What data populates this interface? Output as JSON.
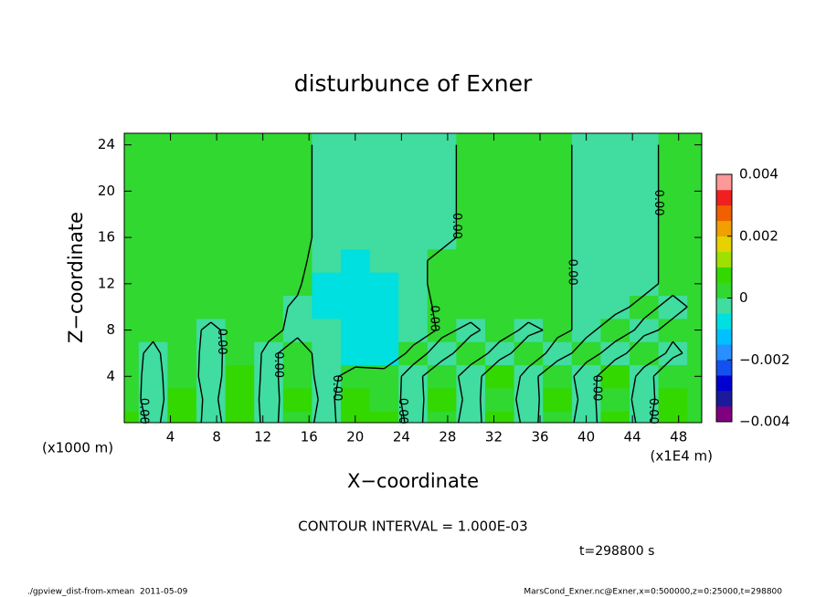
{
  "chart_data": {
    "type": "contour",
    "title": "disturbunce of Exner",
    "xlabel": "X−coordinate",
    "ylabel": "Z−coordinate",
    "x_unit_label": "(x1E4 m)",
    "y_unit_label": "(x1000 m)",
    "xlim": [
      0,
      50
    ],
    "ylim": [
      0,
      25
    ],
    "xticks": [
      4,
      8,
      12,
      16,
      20,
      24,
      28,
      32,
      36,
      40,
      44,
      48
    ],
    "yticks": [
      4,
      8,
      12,
      16,
      20,
      24
    ],
    "x": [
      0,
      2.5,
      5,
      7.5,
      10,
      12.5,
      15,
      17.5,
      20,
      22.5,
      25,
      27.5,
      30,
      32.5,
      35,
      37.5,
      40,
      42.5,
      45,
      47.5,
      50
    ],
    "y": [
      0,
      2,
      4,
      6,
      8,
      10,
      12,
      14,
      16,
      18,
      20,
      22,
      24
    ],
    "z": [
      [
        0.0006,
        -0.0002,
        0.0006,
        -0.0003,
        0.0005,
        -0.0002,
        0.0004,
        -0.0003,
        0.0006,
        0.0005,
        -0.0002,
        0.0004,
        -0.0003,
        0.0005,
        -0.0002,
        0.0004,
        -0.0003,
        0.0005,
        -0.0002,
        0.0006,
        0.0003
      ],
      [
        0.0004,
        -0.0003,
        0.0005,
        -0.0002,
        0.0006,
        -0.0003,
        0.0005,
        -0.0002,
        0.0005,
        0.0004,
        -0.0003,
        0.0005,
        -0.0002,
        0.0004,
        -0.0003,
        0.0005,
        -0.0002,
        0.0004,
        -0.0003,
        0.0005,
        0.0002
      ],
      [
        0.0003,
        -0.0002,
        0.0004,
        -0.0003,
        0.0005,
        -0.0002,
        0.0004,
        -0.0003,
        0.0004,
        0.0003,
        -0.0002,
        0.0004,
        -0.0003,
        0.0005,
        -0.0002,
        0.0004,
        -0.0003,
        0.0005,
        -0.0002,
        0.0004,
        0.0002
      ],
      [
        0.0002,
        -0.0001,
        0.0003,
        -0.0002,
        0.0003,
        -0.0001,
        0.0002,
        -0.0002,
        -0.0006,
        -0.0006,
        0.0002,
        -0.0002,
        0.0003,
        -0.0002,
        0.0003,
        -0.0002,
        0.0002,
        -0.0002,
        0.0003,
        -0.0001,
        0.0002
      ],
      [
        0.0002,
        0.0001,
        0.0002,
        -0.0001,
        0.0002,
        0.0001,
        -0.0001,
        -0.0004,
        -0.0007,
        -0.0007,
        -0.0004,
        0.0001,
        -0.0001,
        0.0002,
        -0.0001,
        0.0001,
        -0.0001,
        0.0002,
        -0.0001,
        0.0001,
        0.0001
      ],
      [
        0.0002,
        0.0002,
        0.0002,
        0.0002,
        0.0002,
        0.0002,
        -0.0001,
        -0.0006,
        -0.0007,
        -0.0006,
        -0.0002,
        0.0001,
        0.0002,
        0.0001,
        0.0002,
        0.0001,
        -0.0001,
        -0.0001,
        0.0001,
        -0.0001,
        0.0001
      ],
      [
        0.0002,
        0.0002,
        0.0002,
        0.0002,
        0.0002,
        0.0002,
        0.0001,
        -0.0006,
        -0.0007,
        -0.0006,
        -0.0001,
        0.0001,
        0.0002,
        0.0002,
        0.0002,
        0.0001,
        -0.0001,
        -0.0001,
        -0.0001,
        0.0001,
        0.0001
      ],
      [
        0.0002,
        0.0002,
        0.0002,
        0.0002,
        0.0002,
        0.0002,
        0.0001,
        -0.0002,
        -0.0006,
        -0.0002,
        -0.0001,
        0.0001,
        0.0002,
        0.0002,
        0.0002,
        0.0001,
        -0.0001,
        -0.0001,
        -0.0001,
        0.0001,
        0.0001
      ],
      [
        0.0002,
        0.0002,
        0.0002,
        0.0002,
        0.0002,
        0.0002,
        0.0001,
        -0.0001,
        -0.0001,
        -0.0001,
        -0.0001,
        -0.0001,
        0.0001,
        0.0002,
        0.0002,
        0.0001,
        -0.0001,
        -0.0001,
        -0.0001,
        0.0001,
        0.0001
      ],
      [
        0.0002,
        0.0002,
        0.0002,
        0.0002,
        0.0002,
        0.0002,
        0.0001,
        -0.0001,
        -0.0001,
        -0.0001,
        -0.0001,
        -0.0001,
        0.0001,
        0.0002,
        0.0002,
        0.0001,
        -0.0001,
        -0.0001,
        -0.0001,
        0.0001,
        0.0001
      ],
      [
        0.0002,
        0.0002,
        0.0002,
        0.0002,
        0.0002,
        0.0002,
        0.0001,
        -0.0001,
        -0.0001,
        -0.0001,
        -0.0001,
        -0.0001,
        0.0001,
        0.0002,
        0.0002,
        0.0001,
        -0.0001,
        -0.0001,
        -0.0001,
        0.0001,
        0.0001
      ],
      [
        0.0002,
        0.0002,
        0.0002,
        0.0002,
        0.0002,
        0.0002,
        0.0001,
        -0.0001,
        -0.0001,
        -0.0001,
        -0.0001,
        -0.0001,
        0.0001,
        0.0002,
        0.0002,
        0.0001,
        -0.0001,
        -0.0001,
        -0.0001,
        0.0001,
        0.0001
      ],
      [
        0.0002,
        0.0002,
        0.0002,
        0.0002,
        0.0002,
        0.0002,
        0.0001,
        -0.0001,
        -0.0001,
        -0.0001,
        -0.0001,
        -0.0001,
        0.0001,
        0.0002,
        0.0002,
        0.0001,
        -0.0001,
        -0.0001,
        -0.0001,
        0.0001,
        0.0001
      ]
    ],
    "clim": [
      -0.004,
      0.004
    ],
    "colors": [
      "#800080",
      "#1a1a9a",
      "#0000d0",
      "#1450f0",
      "#2890ff",
      "#00c0ff",
      "#00e0e0",
      "#40dca0",
      "#30d830",
      "#33d800",
      "#a0e000",
      "#e6d200",
      "#f0a000",
      "#f06000",
      "#f02020",
      "#ff9898"
    ],
    "cticks": [
      {
        "value": -0.004,
        "label": "−0.004"
      },
      {
        "value": -0.002,
        "label": "−0.002"
      },
      0,
      0.002,
      0.004
    ],
    "contour_levels": [
      0
    ],
    "contour_label": "0.00",
    "contour_interval_text": "CONTOUR INTERVAL = 1.000E-03",
    "time_text": "t=298800 s",
    "footer_left": "./gpview_dist-from-xmean  2011-05-09",
    "footer_right": "MarsCond_Exner.nc@Exner,x=0:500000,z=0:25000,t=298800"
  }
}
